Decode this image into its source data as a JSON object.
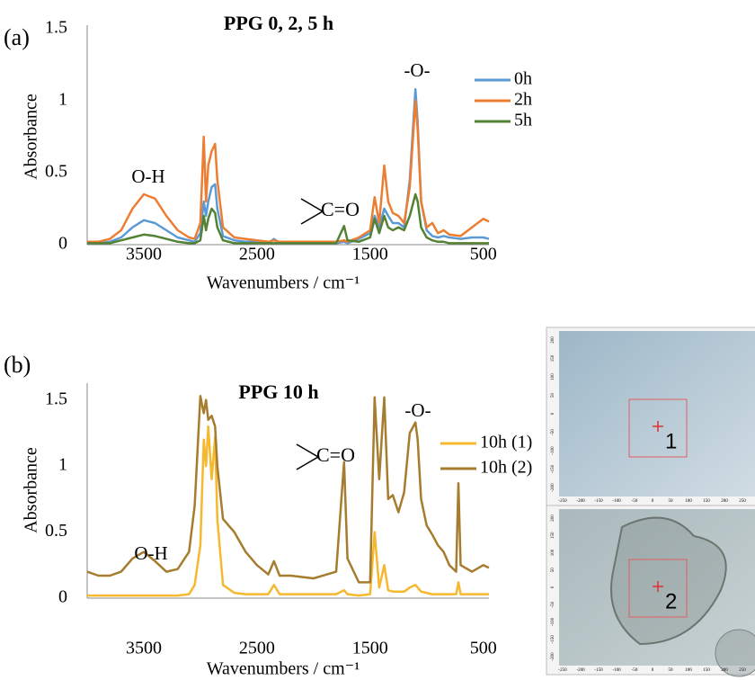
{
  "chart_data": [
    {
      "type": "line",
      "panel_label": "(a)",
      "title": "PPG 0, 2, 5 h",
      "x_label": "Wavenumbers / cm⁻¹",
      "y_label": "Absorbance",
      "xlim": [
        4000,
        450
      ],
      "ylim": [
        0,
        1.5
      ],
      "xticks": [
        3500,
        2500,
        1500,
        500
      ],
      "yticks": [
        0,
        0.5,
        1,
        1.5
      ],
      "annotations": [
        "O-H",
        "C=O",
        "-O-"
      ],
      "x": [
        4000,
        3900,
        3800,
        3700,
        3600,
        3500,
        3400,
        3300,
        3200,
        3100,
        3050,
        3000,
        2970,
        2950,
        2930,
        2900,
        2870,
        2850,
        2800,
        2700,
        2600,
        2500,
        2400,
        2350,
        2300,
        2200,
        2000,
        1800,
        1730,
        1700,
        1600,
        1500,
        1460,
        1420,
        1375,
        1340,
        1300,
        1250,
        1200,
        1150,
        1100,
        1080,
        1050,
        1000,
        950,
        900,
        850,
        800,
        700,
        600,
        500,
        450
      ],
      "series": [
        {
          "name": "0h",
          "color": "#5b9bd5",
          "values": [
            0.01,
            0.01,
            0.02,
            0.05,
            0.12,
            0.17,
            0.15,
            0.1,
            0.05,
            0.03,
            0.02,
            0.08,
            0.3,
            0.2,
            0.3,
            0.4,
            0.42,
            0.25,
            0.06,
            0.03,
            0.02,
            0.02,
            0.01,
            0.04,
            0.01,
            0.01,
            0.01,
            0.01,
            0.02,
            0.01,
            0.04,
            0.08,
            0.2,
            0.12,
            0.25,
            0.2,
            0.15,
            0.15,
            0.12,
            0.45,
            1.08,
            0.85,
            0.3,
            0.1,
            0.06,
            0.05,
            0.06,
            0.05,
            0.04,
            0.05,
            0.05,
            0.04
          ]
        },
        {
          "name": "2h",
          "color": "#ed7d31",
          "values": [
            0.02,
            0.02,
            0.04,
            0.1,
            0.25,
            0.35,
            0.32,
            0.2,
            0.1,
            0.05,
            0.04,
            0.15,
            0.75,
            0.3,
            0.55,
            0.65,
            0.7,
            0.45,
            0.12,
            0.05,
            0.04,
            0.03,
            0.02,
            0.03,
            0.02,
            0.02,
            0.02,
            0.02,
            0.03,
            0.02,
            0.05,
            0.1,
            0.33,
            0.15,
            0.55,
            0.3,
            0.22,
            0.2,
            0.15,
            0.4,
            1.0,
            0.8,
            0.3,
            0.12,
            0.15,
            0.08,
            0.1,
            0.07,
            0.06,
            0.12,
            0.18,
            0.16
          ]
        },
        {
          "name": "5h",
          "color": "#548235",
          "values": [
            0.01,
            0.01,
            0.01,
            0.03,
            0.05,
            0.07,
            0.06,
            0.04,
            0.02,
            0.01,
            0.01,
            0.03,
            0.2,
            0.1,
            0.18,
            0.25,
            0.22,
            0.12,
            0.03,
            0.01,
            0.01,
            0.01,
            0.01,
            0.01,
            0.01,
            0.01,
            0.01,
            0.01,
            0.13,
            0.03,
            0.02,
            0.05,
            0.18,
            0.08,
            0.2,
            0.12,
            0.1,
            0.12,
            0.1,
            0.2,
            0.35,
            0.3,
            0.12,
            0.05,
            0.03,
            0.02,
            0.02,
            0.01,
            0.01,
            0.01,
            0.01,
            0.01
          ]
        }
      ]
    },
    {
      "type": "line",
      "panel_label": "(b)",
      "title": "PPG 10 h",
      "x_label": "Wavenumbers / cm⁻¹",
      "y_label": "Absorbance",
      "xlim": [
        4000,
        450
      ],
      "ylim": [
        0,
        1.6
      ],
      "xticks": [
        3500,
        2500,
        1500,
        500
      ],
      "yticks": [
        0,
        0.5,
        1,
        1.5
      ],
      "annotations": [
        "O-H",
        "C=O",
        "-O-"
      ],
      "x": [
        4000,
        3900,
        3800,
        3700,
        3600,
        3500,
        3400,
        3300,
        3200,
        3100,
        3050,
        3000,
        2970,
        2950,
        2930,
        2900,
        2870,
        2850,
        2800,
        2700,
        2600,
        2500,
        2400,
        2350,
        2300,
        2200,
        2000,
        1800,
        1730,
        1700,
        1600,
        1500,
        1460,
        1420,
        1375,
        1340,
        1300,
        1250,
        1200,
        1150,
        1100,
        1080,
        1050,
        1000,
        950,
        900,
        850,
        800,
        740,
        720,
        700,
        600,
        500,
        450
      ],
      "series": [
        {
          "name": "10h (1)",
          "color": "#f5b82e",
          "values": [
            0.02,
            0.02,
            0.02,
            0.02,
            0.02,
            0.02,
            0.02,
            0.02,
            0.02,
            0.03,
            0.1,
            0.4,
            1.2,
            1.0,
            1.3,
            0.9,
            1.22,
            0.6,
            0.1,
            0.04,
            0.03,
            0.03,
            0.03,
            0.1,
            0.03,
            0.03,
            0.03,
            0.03,
            0.06,
            0.03,
            0.02,
            0.03,
            0.5,
            0.08,
            0.25,
            0.06,
            0.05,
            0.05,
            0.05,
            0.08,
            0.1,
            0.08,
            0.05,
            0.04,
            0.03,
            0.03,
            0.03,
            0.03,
            0.03,
            0.12,
            0.03,
            0.03,
            0.03,
            0.03
          ]
        },
        {
          "name": "10h (2)",
          "color": "#a67c2e",
          "values": [
            0.2,
            0.17,
            0.17,
            0.2,
            0.3,
            0.35,
            0.28,
            0.2,
            0.22,
            0.35,
            0.7,
            1.53,
            1.4,
            1.5,
            1.35,
            1.38,
            1.3,
            1.0,
            0.6,
            0.5,
            0.35,
            0.25,
            0.18,
            0.28,
            0.17,
            0.17,
            0.15,
            0.2,
            1.03,
            0.3,
            0.12,
            0.12,
            1.52,
            0.9,
            1.52,
            0.75,
            0.78,
            0.65,
            0.8,
            1.25,
            1.33,
            1.2,
            0.75,
            0.55,
            0.48,
            0.4,
            0.35,
            0.25,
            0.2,
            0.87,
            0.25,
            0.2,
            0.25,
            0.23
          ]
        }
      ]
    }
  ],
  "micrographs": [
    {
      "label": "1",
      "xticks": [
        "-250",
        "-200",
        "-150",
        "-100",
        "-50",
        "0",
        "50",
        "100",
        "150",
        "200",
        "250"
      ],
      "yticks": [
        "200",
        "150",
        "100",
        "50",
        "0",
        "-50",
        "-100",
        "-150",
        "-200"
      ]
    },
    {
      "label": "2",
      "xticks": [
        "-250",
        "-200",
        "-150",
        "-100",
        "-50",
        "0",
        "50",
        "100",
        "150",
        "200",
        "250"
      ],
      "yticks": [
        "200",
        "150",
        "100",
        "50",
        "0",
        "-50",
        "-100",
        "-150",
        "-200"
      ]
    }
  ]
}
